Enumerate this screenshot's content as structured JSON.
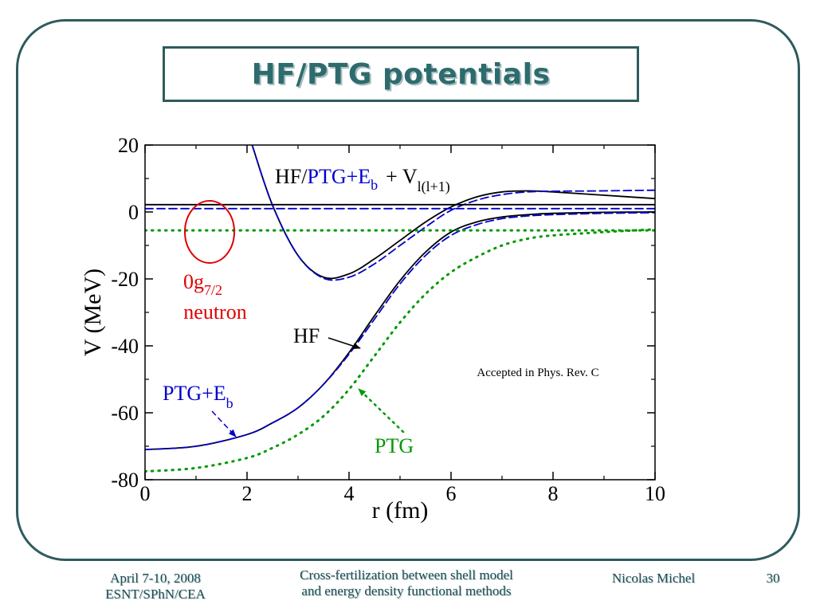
{
  "slide": {
    "title": "HF/PTG potentials",
    "footer_left_line1": "April 7-10, 2008",
    "footer_left_line2": "ESNT/SPhN/CEA",
    "footer_center_line1": "Cross-fertilization between shell model",
    "footer_center_line2": "and energy density functional methods",
    "footer_author": "Nicolas Michel",
    "footer_page": "30"
  },
  "colors": {
    "frame": "#2f5b5e",
    "title": "#2e6b6e",
    "hf": "#000000",
    "ptg_eb": "#0000cc",
    "ptg": "#009900",
    "annotation_red": "#e00000"
  },
  "chart_data": {
    "type": "line",
    "xlabel": "r (fm)",
    "ylabel": "V (MeV)",
    "xlim": [
      0,
      10
    ],
    "ylim": [
      -80,
      20
    ],
    "xticks": [
      0,
      2,
      4,
      6,
      8,
      10
    ],
    "yticks": [
      -80,
      -60,
      -40,
      -20,
      0,
      20
    ],
    "grid": false,
    "legend_title": {
      "hf": "HF",
      "slash": "/",
      "ptg_eb": "PTG+E",
      "ptg_eb_sub": "b",
      "plus_v": "+ V",
      "v_sub": "l(l+1)"
    },
    "annotations": {
      "state": "0g",
      "state_sub": "7/2",
      "particle": "neutron",
      "hf": "HF",
      "ptg_eb": "PTG+E",
      "ptg_eb_sub": "b",
      "ptg": "PTG",
      "accepted": "Accepted in Phys. Rev. C"
    },
    "series": [
      {
        "name": "HF",
        "style": "solid",
        "color": "#000000",
        "x": [
          0,
          1,
          2,
          2.5,
          3,
          3.5,
          4,
          4.5,
          5,
          5.5,
          6,
          6.5,
          7,
          7.5,
          8,
          9,
          10
        ],
        "y": [
          -71,
          -70,
          -66.5,
          -63,
          -58.5,
          -51.5,
          -42,
          -31,
          -20.5,
          -12,
          -6,
          -3,
          -1.5,
          -0.8,
          -0.4,
          -0.1,
          0
        ]
      },
      {
        "name": "PTG+Eb",
        "style": "dashed",
        "color": "#0000cc",
        "x": [
          0,
          1,
          2,
          2.5,
          3,
          3.5,
          4,
          4.5,
          5,
          5.5,
          6,
          6.5,
          7,
          7.5,
          8,
          9,
          10
        ],
        "y": [
          -71,
          -70,
          -66.5,
          -63,
          -58.5,
          -51.5,
          -42.5,
          -32,
          -21.5,
          -13,
          -7,
          -3.8,
          -2,
          -1.2,
          -0.8,
          -0.4,
          -0.2
        ]
      },
      {
        "name": "PTG",
        "style": "dotted",
        "color": "#009900",
        "x": [
          0,
          1,
          2,
          2.5,
          3,
          3.5,
          4,
          4.5,
          5,
          5.5,
          6,
          6.5,
          7,
          7.5,
          8,
          9,
          10
        ],
        "y": [
          -77.5,
          -76.5,
          -73.5,
          -70.5,
          -66.5,
          -61,
          -53,
          -43,
          -33,
          -24.5,
          -18,
          -13.5,
          -10,
          -8,
          -7,
          -6,
          -5.2
        ]
      },
      {
        "name": "HF + Vl(l+1)",
        "style": "solid",
        "color": "#000000",
        "x": [
          2.1,
          2.5,
          3,
          3.5,
          4,
          4.5,
          5,
          5.5,
          6,
          6.5,
          7,
          7.5,
          8,
          9,
          10
        ],
        "y": [
          20,
          2,
          -13,
          -19.5,
          -18.5,
          -14,
          -8.5,
          -3,
          1.5,
          4.5,
          6,
          6.3,
          6,
          5,
          4
        ]
      },
      {
        "name": "PTG+Eb + Vl(l+1)",
        "style": "dashed",
        "color": "#0000cc",
        "x": [
          2.1,
          2.5,
          3,
          3.5,
          4,
          4.5,
          5,
          5.5,
          6,
          6.5,
          7,
          7.5,
          8,
          9,
          10
        ],
        "y": [
          20,
          2,
          -13,
          -19.8,
          -19.5,
          -15.5,
          -10,
          -4.5,
          0.5,
          3.5,
          5.2,
          6,
          6.2,
          6.3,
          6.5
        ]
      },
      {
        "name": "HF energy",
        "style": "solid",
        "color": "#000000",
        "x": [
          0,
          10
        ],
        "y": [
          2.2,
          2.2
        ]
      },
      {
        "name": "PTG+Eb energy",
        "style": "dashed",
        "color": "#0000cc",
        "x": [
          0,
          10
        ],
        "y": [
          1.0,
          1.0
        ]
      },
      {
        "name": "PTG energy",
        "style": "dotted",
        "color": "#009900",
        "x": [
          0,
          10
        ],
        "y": [
          -5.5,
          -5.5
        ]
      }
    ]
  }
}
